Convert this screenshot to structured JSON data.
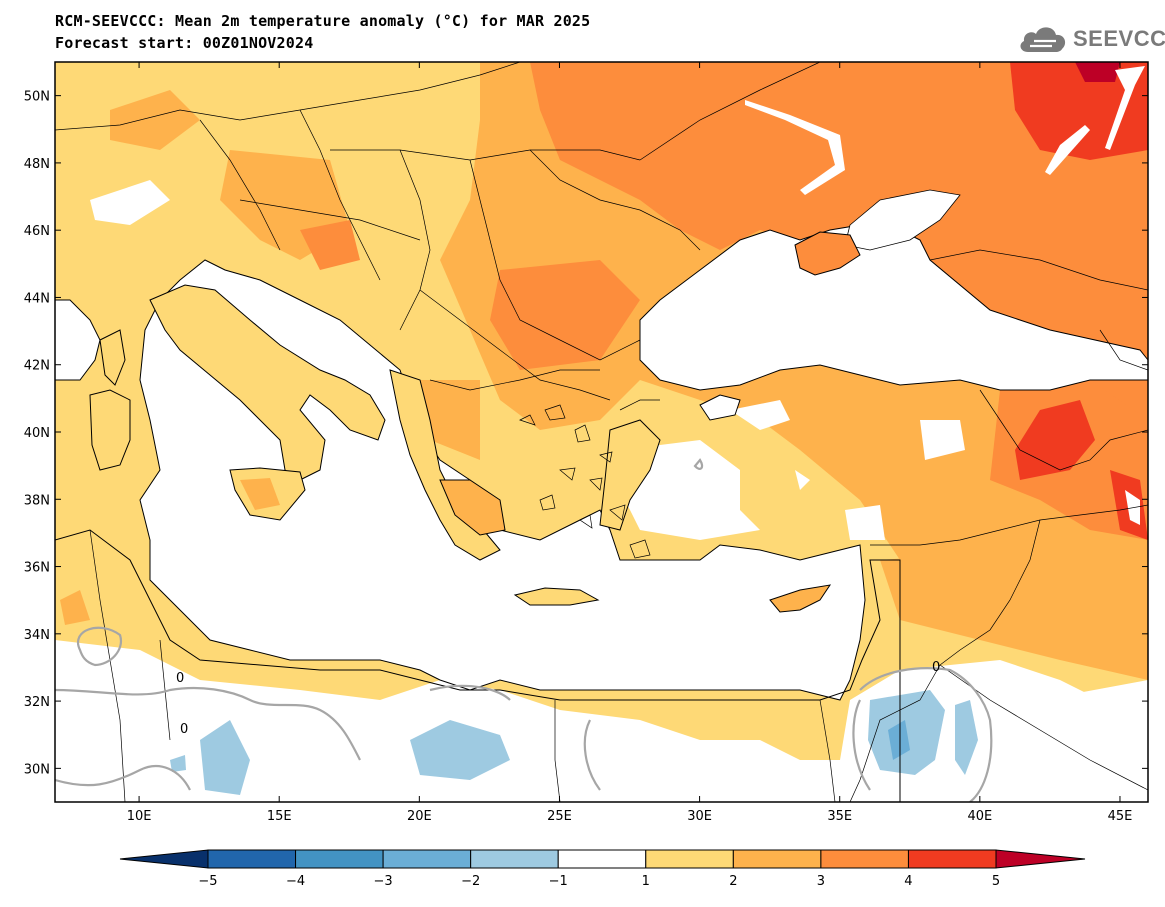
{
  "title_line1": "RCM-SEEVCCC: Mean 2m temperature anomaly (°C) for MAR 2025",
  "title_line2": "Forecast start: 00Z01NOV2024",
  "logo_text": "SEEVCCC",
  "map": {
    "lon_range": [
      7,
      46
    ],
    "lat_range": [
      29,
      51
    ],
    "lon_ticks": [
      10,
      15,
      20,
      25,
      30,
      35,
      40,
      45
    ],
    "lon_labels": [
      "10E",
      "15E",
      "20E",
      "25E",
      "30E",
      "35E",
      "40E",
      "45E"
    ],
    "lat_ticks": [
      30,
      32,
      34,
      36,
      38,
      40,
      42,
      44,
      46,
      48,
      50
    ],
    "lat_labels": [
      "30N",
      "32N",
      "34N",
      "36N",
      "38N",
      "40N",
      "42N",
      "44N",
      "46N",
      "48N",
      "50N"
    ],
    "sea_color": "#ffffff",
    "contour_label": "0"
  },
  "colorbar": {
    "levels": [
      -5,
      -4,
      -3,
      -2,
      -1,
      1,
      2,
      3,
      4,
      5
    ],
    "labels": [
      "−5",
      "−4",
      "−3",
      "−2",
      "−1",
      "1",
      "2",
      "3",
      "4",
      "5"
    ],
    "colors": [
      "#08306b",
      "#2166ac",
      "#4393c3",
      "#6baed6",
      "#9ecae1",
      "#ffffff",
      "#fed976",
      "#feb24c",
      "#fd8d3c",
      "#f03b20",
      "#bd0026"
    ]
  }
}
